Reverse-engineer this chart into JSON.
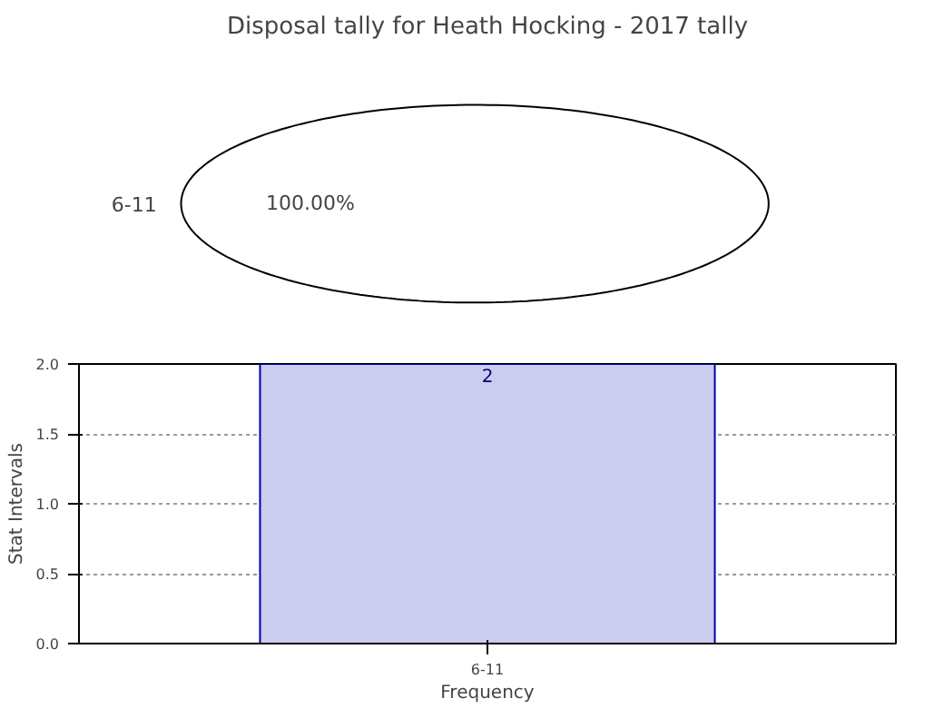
{
  "chart_data": [
    {
      "type": "pie",
      "title": "Disposal tally for Heath Hocking - 2017 tally",
      "categories": [
        "6-11"
      ],
      "values": [
        100
      ],
      "colors": [
        "#ffffff"
      ],
      "value_labels": [
        "100.00%"
      ]
    },
    {
      "type": "bar",
      "categories": [
        "6-11"
      ],
      "values": [
        2
      ],
      "color": "#ccccee",
      "xlabel": "Frequency",
      "ylabel": "Stat Intervals",
      "ylim": [
        0,
        2
      ],
      "yticks": [
        {
          "value": 0,
          "label": "0.0"
        },
        {
          "value": 0.5,
          "label": "0.5"
        },
        {
          "value": 1,
          "label": "1.0"
        },
        {
          "value": 1.5,
          "label": "1.5"
        },
        {
          "value": 2,
          "label": "2.0"
        }
      ],
      "grid": true,
      "data_labels": true
    }
  ]
}
